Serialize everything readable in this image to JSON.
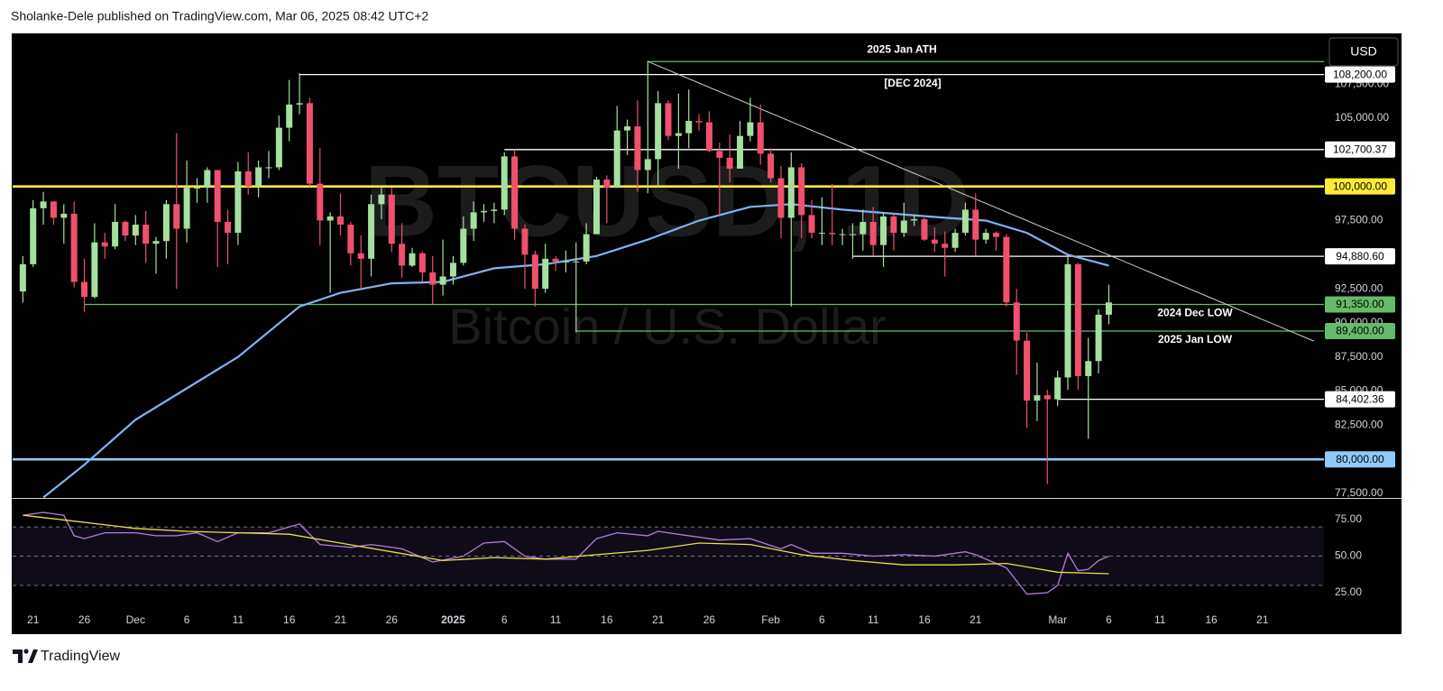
{
  "header": "Sholanke-Dele published on TradingView.com, Mar 06, 2025 08:42 UTC+2",
  "brand": "TradingView",
  "currency_button": "USD",
  "chart_data": {
    "type": "candlestick",
    "watermark": "BTCUSD, 1D",
    "subtitle": "Bitcoin / U.S. Dollar",
    "up_color": "#a5e0a0",
    "down_color": "#f0506e",
    "x": [
      "2024-11-20",
      "2024-11-21",
      "2024-11-22",
      "2024-11-23",
      "2024-11-24",
      "2024-11-25",
      "2024-11-26",
      "2024-11-27",
      "2024-11-28",
      "2024-11-29",
      "2024-11-30",
      "2024-12-01",
      "2024-12-02",
      "2024-12-03",
      "2024-12-04",
      "2024-12-05",
      "2024-12-06",
      "2024-12-07",
      "2024-12-08",
      "2024-12-09",
      "2024-12-10",
      "2024-12-11",
      "2024-12-12",
      "2024-12-13",
      "2024-12-14",
      "2024-12-15",
      "2024-12-16",
      "2024-12-17",
      "2024-12-18",
      "2024-12-19",
      "2024-12-20",
      "2024-12-21",
      "2024-12-22",
      "2024-12-23",
      "2024-12-24",
      "2024-12-25",
      "2024-12-26",
      "2024-12-27",
      "2024-12-28",
      "2024-12-29",
      "2024-12-30",
      "2024-12-31",
      "2025-01-01",
      "2025-01-02",
      "2025-01-03",
      "2025-01-04",
      "2025-01-05",
      "2025-01-06",
      "2025-01-07",
      "2025-01-08",
      "2025-01-09",
      "2025-01-10",
      "2025-01-11",
      "2025-01-12",
      "2025-01-13",
      "2025-01-14",
      "2025-01-15",
      "2025-01-16",
      "2025-01-17",
      "2025-01-18",
      "2025-01-19",
      "2025-01-20",
      "2025-01-21",
      "2025-01-22",
      "2025-01-23",
      "2025-01-24",
      "2025-01-25",
      "2025-01-26",
      "2025-01-27",
      "2025-01-28",
      "2025-01-29",
      "2025-01-30",
      "2025-01-31",
      "2025-02-01",
      "2025-02-02",
      "2025-02-03",
      "2025-02-04",
      "2025-02-05",
      "2025-02-06",
      "2025-02-07",
      "2025-02-08",
      "2025-02-09",
      "2025-02-10",
      "2025-02-11",
      "2025-02-12",
      "2025-02-13",
      "2025-02-14",
      "2025-02-15",
      "2025-02-16",
      "2025-02-17",
      "2025-02-18",
      "2025-02-19",
      "2025-02-20",
      "2025-02-21",
      "2025-02-22",
      "2025-02-23",
      "2025-02-24",
      "2025-02-25",
      "2025-02-26",
      "2025-02-27",
      "2025-02-28",
      "2025-03-01",
      "2025-03-02",
      "2025-03-03",
      "2025-03-04",
      "2025-03-05",
      "2025-03-06"
    ],
    "open": [
      92300,
      94300,
      98400,
      98900,
      97700,
      98000,
      93000,
      91900,
      95900,
      95600,
      97400,
      96400,
      97200,
      95800,
      96000,
      98700,
      96900,
      99900,
      99900,
      101200,
      97400,
      96600,
      101100,
      100000,
      101400,
      101400,
      104300,
      106000,
      106100,
      100200,
      97500,
      97800,
      97200,
      95100,
      94700,
      98700,
      99400,
      95800,
      94200,
      95100,
      93700,
      92800,
      93400,
      94400,
      96900,
      98100,
      98200,
      98300,
      102200,
      96900,
      95000,
      92500,
      94700,
      94500,
      94500,
      94500,
      96500,
      100500,
      99900,
      104100,
      104400,
      101200,
      102000,
      106100,
      103700,
      103900,
      104800,
      104700,
      102600,
      102100,
      101300,
      103700,
      104700,
      102400,
      100600,
      97700,
      101400,
      97900,
      96600,
      96600,
      96500,
      96500,
      96500,
      97400,
      95700,
      97800,
      96600,
      97500,
      97600,
      96100,
      95800,
      95500,
      96600,
      98300,
      96100,
      96600,
      96300,
      91500,
      88700,
      84300,
      84700,
      84400,
      86000,
      94300,
      86100,
      87200,
      90600
    ],
    "high": [
      94900,
      99000,
      99600,
      98900,
      98700,
      98900,
      94700,
      97300,
      96600,
      98700,
      97500,
      97900,
      98200,
      96300,
      99000,
      103900,
      101900,
      100600,
      101400,
      101200,
      98300,
      101800,
      102500,
      101900,
      102600,
      105200,
      107800,
      108300,
      106500,
      102800,
      98100,
      99500,
      97400,
      96400,
      99400,
      99900,
      99900,
      97300,
      95500,
      95200,
      94900,
      96100,
      94900,
      97800,
      98900,
      98700,
      98800,
      102500,
      102700,
      97200,
      95300,
      95800,
      94900,
      95300,
      95900,
      97300,
      100700,
      100800,
      105900,
      104900,
      106300,
      109200,
      107000,
      106300,
      106800,
      107100,
      105300,
      105500,
      103200,
      103800,
      104800,
      106500,
      106000,
      102800,
      101500,
      102500,
      101700,
      99000,
      99200,
      100200,
      96900,
      97300,
      98300,
      98500,
      98100,
      98000,
      98800,
      97900,
      97700,
      97000,
      96700,
      96900,
      98800,
      99500,
      96900,
      96700,
      96500,
      92500,
      89300,
      87100,
      85100,
      86500,
      95000,
      94400,
      88900,
      91000,
      92800
    ],
    "low": [
      91500,
      94100,
      97200,
      97200,
      95800,
      92600,
      90800,
      91800,
      94700,
      95400,
      96000,
      95700,
      94400,
      93600,
      94700,
      92500,
      95900,
      98800,
      98800,
      94100,
      94300,
      95700,
      99400,
      99200,
      100600,
      101200,
      103300,
      105300,
      100000,
      95700,
      92200,
      96400,
      94200,
      92500,
      93400,
      97600,
      95200,
      93300,
      94100,
      93000,
      91300,
      92000,
      92800,
      94200,
      96000,
      97400,
      97300,
      97900,
      96100,
      92500,
      91200,
      92200,
      93800,
      93700,
      89300,
      94300,
      96500,
      97300,
      99900,
      102300,
      99600,
      99500,
      100100,
      103400,
      101300,
      102800,
      104100,
      102500,
      97800,
      100300,
      101300,
      103300,
      101600,
      100300,
      96200,
      91200,
      96200,
      96200,
      95700,
      95700,
      95700,
      94700,
      95300,
      94900,
      94100,
      95300,
      96300,
      97100,
      96000,
      95200,
      93400,
      95200,
      96400,
      94900,
      95800,
      95300,
      91200,
      86200,
      82300,
      82800,
      78200,
      83900,
      85100,
      85100,
      81500,
      86300,
      89900
    ],
    "close": [
      94300,
      98400,
      98900,
      97700,
      98000,
      93000,
      91900,
      95900,
      95600,
      97400,
      96400,
      97200,
      95800,
      96000,
      98700,
      96900,
      99900,
      99900,
      101200,
      97400,
      96600,
      101100,
      100000,
      101400,
      101400,
      104300,
      106000,
      106100,
      100200,
      97500,
      97800,
      97200,
      95100,
      94700,
      98700,
      99400,
      95800,
      94200,
      95100,
      93700,
      92800,
      93400,
      94400,
      96900,
      98100,
      98200,
      98300,
      102200,
      96900,
      95000,
      92500,
      94700,
      94500,
      94500,
      94500,
      96500,
      100500,
      99900,
      104100,
      104400,
      101200,
      102000,
      106100,
      103700,
      103900,
      104800,
      104700,
      102600,
      102100,
      101300,
      103700,
      104700,
      102400,
      100600,
      97700,
      101400,
      97900,
      96600,
      96600,
      96500,
      96500,
      96500,
      97400,
      95700,
      97800,
      96600,
      97500,
      97600,
      96100,
      95800,
      95500,
      96600,
      98300,
      96100,
      96600,
      96300,
      91500,
      88700,
      84300,
      84700,
      84400,
      86000,
      94300,
      86100,
      87200,
      90600,
      91500
    ],
    "xlim": [
      "2024-11-19",
      "2025-03-27"
    ],
    "ylim": [
      77170,
      111215
    ],
    "xticks": [
      {
        "value": "2024-11-21",
        "label": "21"
      },
      {
        "value": "2024-11-26",
        "label": "26"
      },
      {
        "value": "2024-12-01",
        "label": "Dec"
      },
      {
        "value": "2024-12-06",
        "label": "6"
      },
      {
        "value": "2024-12-11",
        "label": "11"
      },
      {
        "value": "2024-12-16",
        "label": "16"
      },
      {
        "value": "2024-12-21",
        "label": "21"
      },
      {
        "value": "2024-12-26",
        "label": "26"
      },
      {
        "value": "2025-01-01",
        "label": "2025"
      },
      {
        "value": "2025-01-06",
        "label": "6"
      },
      {
        "value": "2025-01-11",
        "label": "11"
      },
      {
        "value": "2025-01-16",
        "label": "16"
      },
      {
        "value": "2025-01-21",
        "label": "21"
      },
      {
        "value": "2025-01-26",
        "label": "26"
      },
      {
        "value": "2025-02-01",
        "label": "Feb"
      },
      {
        "value": "2025-02-06",
        "label": "6"
      },
      {
        "value": "2025-02-11",
        "label": "11"
      },
      {
        "value": "2025-02-16",
        "label": "16"
      },
      {
        "value": "2025-02-21",
        "label": "21"
      },
      {
        "value": "2025-03-01",
        "label": "Mar"
      },
      {
        "value": "2025-03-06",
        "label": "6"
      },
      {
        "value": "2025-03-11",
        "label": "11"
      },
      {
        "value": "2025-03-16",
        "label": "16"
      },
      {
        "value": "2025-03-21",
        "label": "21"
      }
    ],
    "yticks": [
      {
        "value": 77500,
        "label": "77,500.00"
      },
      {
        "value": 80000,
        "label": "80,000.00"
      },
      {
        "value": 82500,
        "label": "82,500.00"
      },
      {
        "value": 85000,
        "label": "85,000.00"
      },
      {
        "value": 87500,
        "label": "87,500.00"
      },
      {
        "value": 90000,
        "label": "90,000.00"
      },
      {
        "value": 92500,
        "label": "92,500.00"
      },
      {
        "value": 95000,
        "label": "95,000.00"
      },
      {
        "value": 97500,
        "label": "97,500.00"
      },
      {
        "value": 100000,
        "label": "100,000.00"
      },
      {
        "value": 102500,
        "label": "102,500.00"
      },
      {
        "value": 105000,
        "label": "105,000.00"
      },
      {
        "value": 107500,
        "label": "107,500.00"
      }
    ],
    "levels": [
      {
        "value": 109150,
        "start": "2025-01-20",
        "color": "#66bb6a",
        "note": "2025 Jan ATH"
      },
      {
        "value": 108200,
        "label": "108,200.00",
        "start": "2024-12-17",
        "color": "#ffffff",
        "note": "[DEC 2024]"
      },
      {
        "value": 102700.37,
        "label": "102,700.37",
        "start": "2025-01-06",
        "color": "#ffffff"
      },
      {
        "value": 100000,
        "label": "100,000.00",
        "color": "#ffeb3b"
      },
      {
        "value": 94880.6,
        "label": "94,880.60",
        "start": "2025-02-09",
        "color": "#ffffff"
      },
      {
        "value": 91350,
        "label": "91,350.00",
        "start": "2024-11-26",
        "color": "#66bb6a",
        "note": "2024 Dec LOW"
      },
      {
        "value": 89400,
        "label": "89,400.00",
        "start": "2025-01-13",
        "color": "#66bb6a",
        "note": "2025 Jan LOW"
      },
      {
        "value": 84402.36,
        "label": "84,402.36",
        "start": "2025-03-01",
        "color": "#ffffff"
      },
      {
        "value": 80000,
        "label": "80,000.00",
        "color": "#90caf9"
      }
    ],
    "trendline": {
      "color": "#cfcfcf",
      "x": [
        "2025-01-20",
        "2025-03-26"
      ],
      "values": [
        109150,
        88670
      ]
    },
    "moving_average": {
      "color": "#7fb3f5",
      "x": [
        "2024-11-22",
        "2024-11-26",
        "2024-12-01",
        "2024-12-06",
        "2024-12-11",
        "2024-12-17",
        "2024-12-21",
        "2024-12-26",
        "2024-12-31",
        "2025-01-05",
        "2025-01-10",
        "2025-01-15",
        "2025-01-20",
        "2025-01-25",
        "2025-01-30",
        "2025-02-03",
        "2025-02-08",
        "2025-02-13",
        "2025-02-18",
        "2025-02-22",
        "2025-02-26",
        "2025-03-02",
        "2025-03-06"
      ],
      "values": [
        77200,
        79600,
        82900,
        85200,
        87500,
        91200,
        92200,
        92900,
        93000,
        94000,
        94300,
        94900,
        96100,
        97500,
        98500,
        98700,
        98300,
        98000,
        97700,
        97500,
        96600,
        95000,
        94200
      ]
    },
    "rsi": {
      "ylim": [
        10.8,
        88
      ],
      "yticks": [
        {
          "value": 75,
          "label": "75.00"
        },
        {
          "value": 50,
          "label": "50.00"
        },
        {
          "value": 25,
          "label": "25.00"
        }
      ],
      "levels": [
        70,
        50,
        30
      ],
      "band": [
        70,
        30
      ],
      "band_color": "#7e57c2",
      "series": [
        {
          "color": "#b57edc",
          "x": [
            "2024-11-20",
            "2024-11-22",
            "2024-11-24",
            "2024-11-25",
            "2024-11-26",
            "2024-11-28",
            "2024-12-01",
            "2024-12-03",
            "2024-12-05",
            "2024-12-07",
            "2024-12-09",
            "2024-12-11",
            "2024-12-14",
            "2024-12-17",
            "2024-12-19",
            "2024-12-22",
            "2024-12-24",
            "2024-12-27",
            "2024-12-30",
            "2025-01-02",
            "2025-01-04",
            "2025-01-06",
            "2025-01-08",
            "2025-01-10",
            "2025-01-13",
            "2025-01-15",
            "2025-01-17",
            "2025-01-20",
            "2025-01-21",
            "2025-01-24",
            "2025-01-27",
            "2025-01-30",
            "2025-02-02",
            "2025-02-03",
            "2025-02-05",
            "2025-02-08",
            "2025-02-11",
            "2025-02-14",
            "2025-02-17",
            "2025-02-20",
            "2025-02-21",
            "2025-02-24",
            "2025-02-26",
            "2025-02-28",
            "2025-03-01",
            "2025-03-02",
            "2025-03-03",
            "2025-03-04",
            "2025-03-05",
            "2025-03-06"
          ],
          "values": [
            78,
            80,
            78,
            64,
            62,
            66,
            66,
            64,
            64,
            66,
            60,
            66,
            66,
            72,
            58,
            56,
            58,
            55,
            46,
            50,
            59,
            60,
            50,
            48,
            48,
            62,
            66,
            64,
            67,
            64,
            61,
            62,
            55,
            58,
            52,
            52,
            50,
            51,
            50,
            53,
            51,
            42,
            24,
            25,
            30,
            52,
            40,
            41,
            47,
            50
          ]
        },
        {
          "color": "#e6e04a",
          "x": [
            "2024-11-20",
            "2024-11-25",
            "2024-12-01",
            "2024-12-06",
            "2024-12-11",
            "2024-12-16",
            "2024-12-21",
            "2024-12-26",
            "2024-12-31",
            "2025-01-05",
            "2025-01-10",
            "2025-01-15",
            "2025-01-20",
            "2025-01-25",
            "2025-01-30",
            "2025-02-04",
            "2025-02-09",
            "2025-02-14",
            "2025-02-19",
            "2025-02-24",
            "2025-03-01",
            "2025-03-06"
          ],
          "values": [
            78,
            74,
            69,
            67,
            66,
            65,
            59,
            53,
            47,
            49,
            48,
            51,
            54,
            59,
            58,
            51,
            47,
            44,
            44,
            45,
            39,
            38
          ]
        }
      ]
    }
  }
}
